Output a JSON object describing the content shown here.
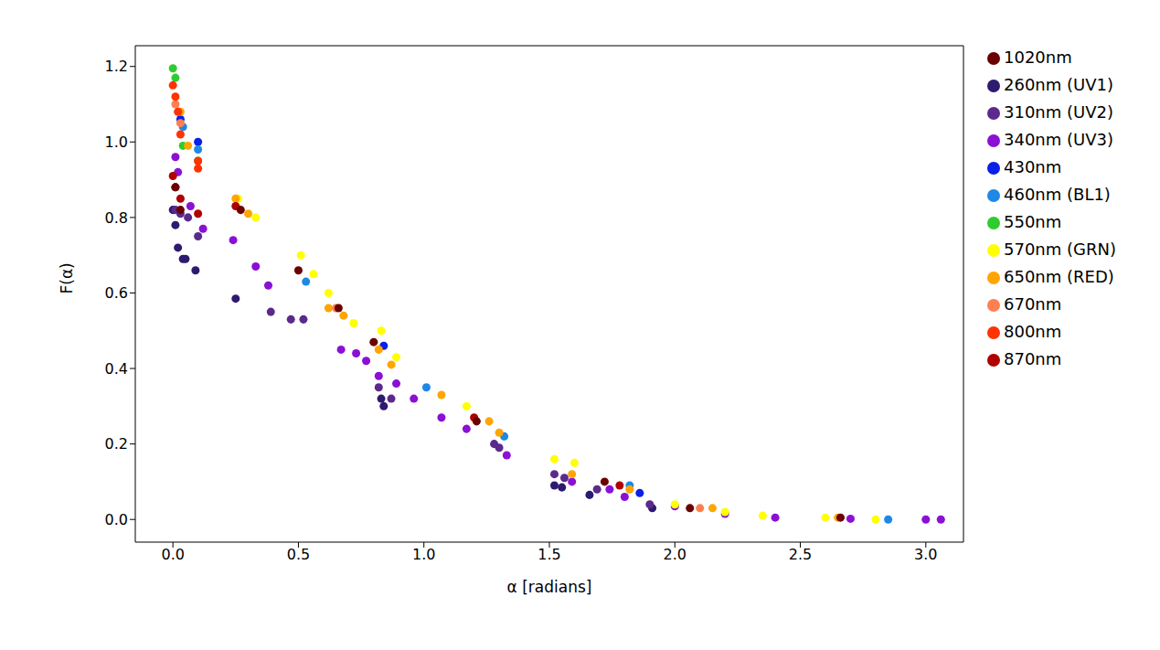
{
  "chart_data": {
    "type": "scatter",
    "x_label": "α [radians]",
    "y_label": "F(α)",
    "xlim": [
      -0.15,
      3.15
    ],
    "ylim": [
      -0.06,
      1.255
    ],
    "xticks": [
      {
        "value": 0,
        "label": "0.0"
      },
      {
        "value": 0.5,
        "label": "0.5"
      },
      {
        "value": 1,
        "label": "1.0"
      },
      {
        "value": 1.5,
        "label": "1.5"
      },
      {
        "value": 2,
        "label": "2.0"
      },
      {
        "value": 2.5,
        "label": "2.5"
      },
      {
        "value": 3,
        "label": "3.0"
      }
    ],
    "yticks": [
      {
        "value": 0,
        "label": "0.0"
      },
      {
        "value": 0.2,
        "label": "0.2"
      },
      {
        "value": 0.4,
        "label": "0.4"
      },
      {
        "value": 0.6,
        "label": "0.6"
      },
      {
        "value": 0.8,
        "label": "0.8"
      },
      {
        "value": 1,
        "label": "1.0"
      },
      {
        "value": 1.2,
        "label": "1.2"
      }
    ],
    "grid": false,
    "legend": "upper right",
    "marker": "circle",
    "series": [
      {
        "name": "260nm (UV1)",
        "color": "#2e1a6e",
        "x": [
          0.0,
          0.01,
          0.02,
          0.04,
          0.05,
          0.09,
          0.25,
          0.83,
          0.84,
          1.52,
          1.55,
          1.66,
          1.91
        ],
        "values": [
          0.82,
          0.78,
          0.72,
          0.69,
          0.69,
          0.66,
          0.585,
          0.32,
          0.3,
          0.09,
          0.085,
          0.065,
          0.03
        ]
      },
      {
        "name": "310nm (UV2)",
        "color": "#5b2a8c",
        "x": [
          0.01,
          0.03,
          0.06,
          0.1,
          0.39,
          0.47,
          0.52,
          0.82,
          0.87,
          1.28,
          1.3,
          1.52,
          1.56,
          1.69,
          1.9
        ],
        "values": [
          0.82,
          0.81,
          0.8,
          0.75,
          0.55,
          0.53,
          0.53,
          0.35,
          0.32,
          0.2,
          0.19,
          0.12,
          0.11,
          0.08,
          0.04
        ]
      },
      {
        "name": "340nm (UV3)",
        "color": "#8b10d4",
        "x": [
          0.01,
          0.02,
          0.07,
          0.12,
          0.24,
          0.33,
          0.38,
          0.67,
          0.73,
          0.77,
          0.82,
          0.89,
          0.96,
          1.07,
          1.17,
          1.33,
          1.59,
          1.74,
          1.8,
          2.0,
          2.2,
          2.4,
          2.7,
          3.0,
          3.06
        ],
        "values": [
          0.96,
          0.92,
          0.83,
          0.77,
          0.74,
          0.67,
          0.62,
          0.45,
          0.44,
          0.42,
          0.38,
          0.36,
          0.32,
          0.27,
          0.24,
          0.17,
          0.1,
          0.08,
          0.06,
          0.035,
          0.015,
          0.005,
          0.002,
          0.0,
          0.0
        ]
      },
      {
        "name": "430nm",
        "color": "#0a1fe8",
        "x": [
          0.03,
          0.1,
          0.84,
          1.86
        ],
        "values": [
          1.06,
          1.0,
          0.46,
          0.07
        ]
      },
      {
        "name": "460nm (BL1)",
        "color": "#1e88e5",
        "x": [
          0.04,
          0.1,
          0.53,
          1.01,
          1.32,
          1.82,
          2.85
        ],
        "values": [
          1.04,
          0.98,
          0.63,
          0.35,
          0.22,
          0.09,
          0.0
        ]
      },
      {
        "name": "550nm",
        "color": "#2ecc2e",
        "x": [
          0.0,
          0.01,
          0.04,
          0.1
        ],
        "values": [
          1.195,
          1.17,
          0.99,
          0.95
        ]
      },
      {
        "name": "570nm (GRN)",
        "color": "#ffff00",
        "x": [
          0.26,
          0.33,
          0.51,
          0.56,
          0.62,
          0.72,
          0.83,
          0.89,
          1.17,
          1.52,
          1.6,
          2.0,
          2.2,
          2.35,
          2.6,
          2.8
        ],
        "values": [
          0.85,
          0.8,
          0.7,
          0.65,
          0.6,
          0.52,
          0.5,
          0.43,
          0.3,
          0.16,
          0.15,
          0.04,
          0.02,
          0.01,
          0.005,
          0.0
        ]
      },
      {
        "name": "650nm (RED)",
        "color": "#ffa500",
        "x": [
          0.03,
          0.06,
          0.25,
          0.3,
          0.62,
          0.68,
          0.82,
          0.87,
          1.07,
          1.26,
          1.3,
          1.59,
          1.82,
          2.15,
          2.65
        ],
        "values": [
          1.08,
          0.99,
          0.85,
          0.81,
          0.56,
          0.54,
          0.45,
          0.41,
          0.33,
          0.26,
          0.23,
          0.12,
          0.08,
          0.03,
          0.005
        ]
      },
      {
        "name": "670nm",
        "color": "#ff7f50",
        "x": [
          0.01,
          0.03,
          0.65,
          2.1
        ],
        "values": [
          1.1,
          1.05,
          0.56,
          0.03
        ]
      },
      {
        "name": "800nm",
        "color": "#ff3300",
        "x": [
          0.0,
          0.01,
          0.02,
          0.03,
          0.1,
          0.1
        ],
        "values": [
          1.15,
          1.12,
          1.08,
          1.02,
          0.95,
          0.93
        ]
      },
      {
        "name": "870nm",
        "color": "#b00000",
        "x": [
          0.0,
          0.01,
          0.03,
          0.1,
          0.25,
          1.2,
          1.78
        ],
        "values": [
          0.91,
          0.88,
          0.85,
          0.81,
          0.83,
          0.27,
          0.09
        ]
      },
      {
        "name": "1020nm",
        "color": "#6b0000",
        "x": [
          0.01,
          0.03,
          0.27,
          0.5,
          0.66,
          0.8,
          1.21,
          1.72,
          2.06,
          2.66
        ],
        "values": [
          0.88,
          0.82,
          0.82,
          0.66,
          0.56,
          0.47,
          0.26,
          0.1,
          0.03,
          0.005
        ]
      }
    ]
  }
}
